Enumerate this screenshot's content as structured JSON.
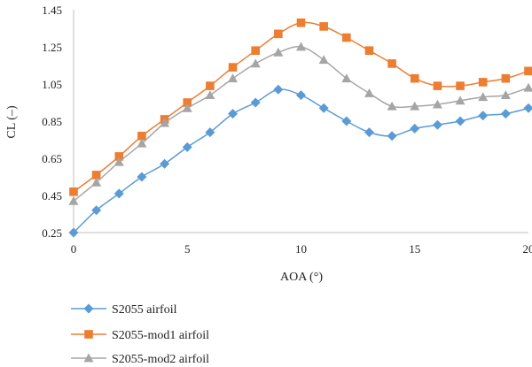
{
  "chart_data": {
    "type": "line",
    "title": "",
    "xlabel": "AOA (°)",
    "ylabel": "CL (–)",
    "xlim": [
      0,
      20
    ],
    "ylim": [
      0.25,
      1.45
    ],
    "x_ticks": [
      "0",
      "5",
      "10",
      "15",
      "20"
    ],
    "y_ticks": [
      "1.45",
      "1.25",
      "1.05",
      "0.85",
      "0.65",
      "0.45",
      "0.25"
    ],
    "grid": false,
    "legend_position": "bottom-left",
    "x": [
      0,
      1,
      2,
      3,
      4,
      5,
      6,
      7,
      8,
      9,
      10,
      11,
      12,
      13,
      14,
      15,
      16,
      17,
      18,
      19,
      20
    ],
    "series": [
      {
        "name": "S2055 airfoil",
        "marker": "diamond",
        "color": "#5b9bd5",
        "values": [
          0.25,
          0.37,
          0.46,
          0.55,
          0.62,
          0.71,
          0.79,
          0.89,
          0.95,
          1.02,
          0.99,
          0.92,
          0.85,
          0.79,
          0.77,
          0.81,
          0.83,
          0.85,
          0.88,
          0.89,
          0.92
        ]
      },
      {
        "name": "S2055-mod1 airfoil",
        "marker": "square",
        "color": "#ed7d31",
        "values": [
          0.47,
          0.56,
          0.66,
          0.77,
          0.86,
          0.95,
          1.04,
          1.14,
          1.23,
          1.32,
          1.38,
          1.36,
          1.3,
          1.23,
          1.16,
          1.08,
          1.04,
          1.04,
          1.06,
          1.08,
          1.12
        ]
      },
      {
        "name": "S2055-mod2 airfoil",
        "marker": "triangle",
        "color": "#a5a5a5",
        "values": [
          0.42,
          0.52,
          0.63,
          0.73,
          0.84,
          0.92,
          0.99,
          1.08,
          1.16,
          1.22,
          1.25,
          1.18,
          1.08,
          1.0,
          0.93,
          0.93,
          0.94,
          0.96,
          0.98,
          0.99,
          1.03
        ]
      }
    ]
  }
}
